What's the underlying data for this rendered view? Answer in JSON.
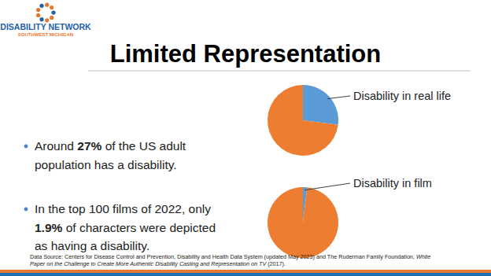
{
  "slide": {
    "logo": {
      "line1": "DISABILITY NETWORK",
      "line2": "SOUTHWEST MICHIGAN"
    },
    "title": "Limited Representation",
    "bullets": [
      {
        "lines": [
          [
            {
              "text": "Around "
            },
            {
              "text": "27%",
              "bold": true
            },
            {
              "text": " of the US adult"
            }
          ],
          [
            {
              "text": "population has a disability."
            }
          ]
        ]
      },
      {
        "lines": [
          [
            {
              "text": "In the top 100 films of 2022, only"
            }
          ],
          [
            {
              "text": "1.9%",
              "bold": true
            },
            {
              "text": " of characters were depicted"
            }
          ],
          [
            {
              "text": "as having a disability."
            }
          ]
        ]
      }
    ],
    "source": {
      "lines": [
        [
          {
            "text": "Data Source: Centers for Disease Control and Prevention, Disability and Health Data System (updated May 2023) and The Ruderman Family Foundation, "
          },
          {
            "text": "White",
            "italic": true
          }
        ],
        [
          {
            "text": "Paper on the Challenge to Create More Authentic Disability Casting and Representation on TV",
            "italic": true
          },
          {
            "text": " (2017)."
          }
        ]
      ]
    }
  },
  "chart_data": [
    {
      "type": "pie",
      "categories": [
        "Disability in real life",
        null
      ],
      "values": [
        27,
        73
      ],
      "colors": [
        "#5b9bd5",
        "#ed7d31"
      ]
    },
    {
      "type": "pie",
      "categories": [
        "Disability in film",
        null
      ],
      "values": [
        1.9,
        98.1
      ],
      "colors": [
        "#5b9bd5",
        "#ed7d31"
      ]
    }
  ]
}
